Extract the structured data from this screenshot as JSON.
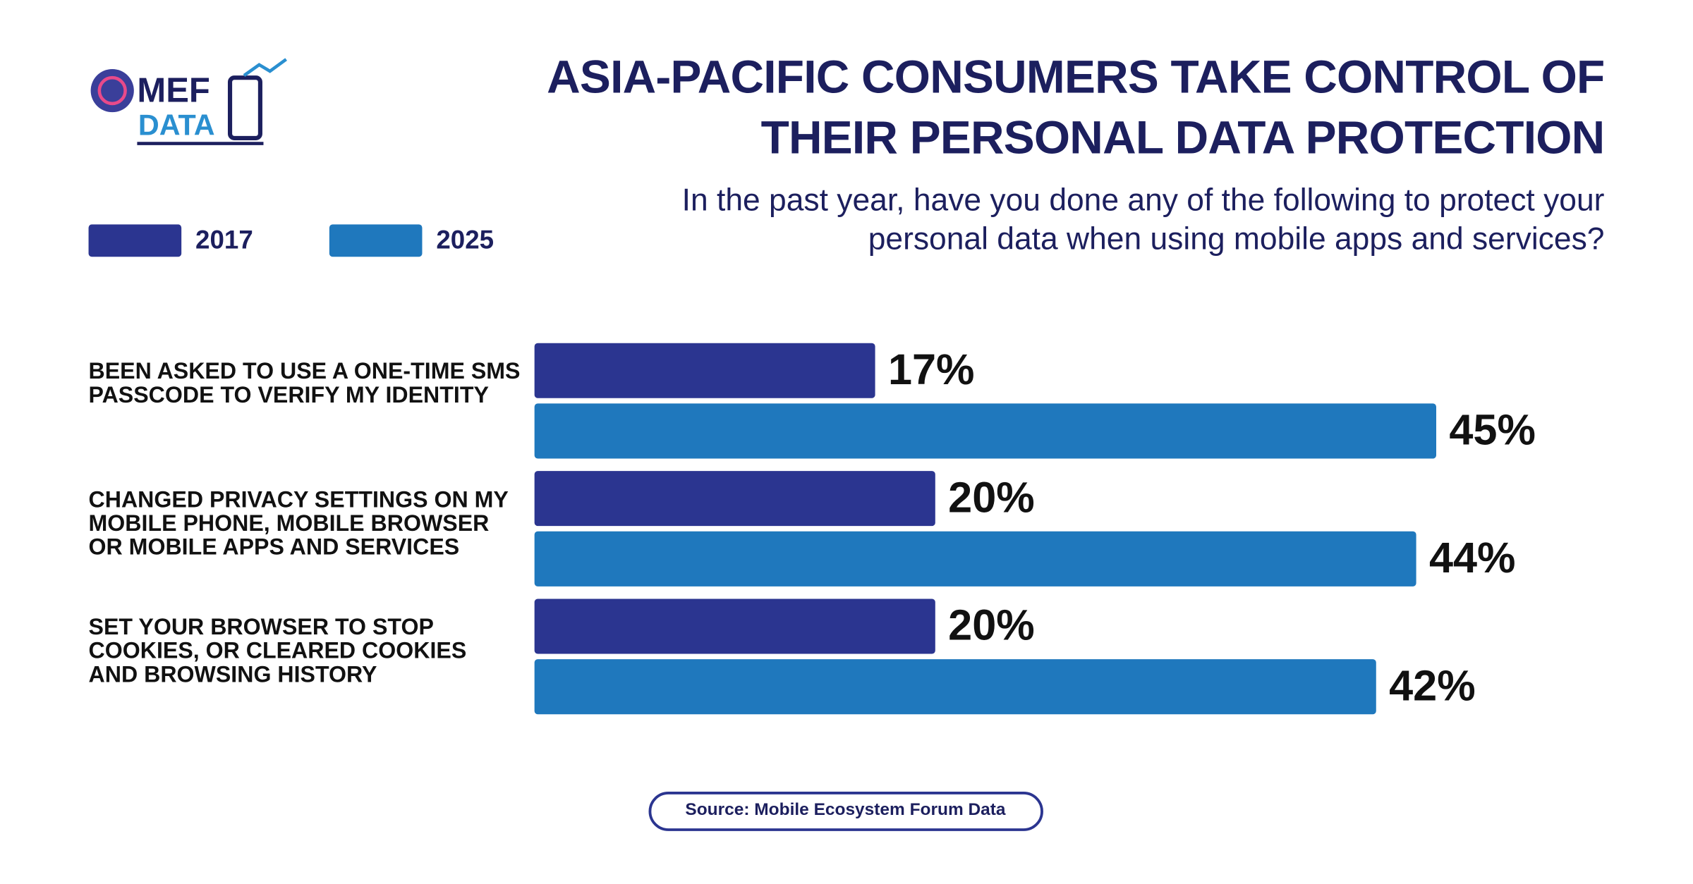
{
  "logo": [
    "MEF",
    "DATA"
  ],
  "chart_data": {
    "type": "bar",
    "orientation": "horizontal",
    "title": "ASIA-PACIFIC CONSUMERS TAKE CONTROL OF THEIR PERSONAL DATA PROTECTION",
    "subtitle": "In the past year, have you done any of the following to protect your personal data when using mobile apps and services?",
    "categories": [
      "BEEN ASKED TO USE A ONE-TIME SMS PASSCODE TO VERIFY MY IDENTITY",
      "CHANGED PRIVACY SETTINGS ON MY MOBILE PHONE, MOBILE BROWSER OR MOBILE APPS AND SERVICES",
      "SET YOUR BROWSER TO STOP COOKIES, OR CLEARED COOKIES AND BROWSING HISTORY"
    ],
    "series": [
      {
        "name": "2017",
        "color": "#2b3590",
        "values": [
          17,
          20,
          20
        ],
        "value_labels": [
          "17%",
          "20%",
          "20%"
        ]
      },
      {
        "name": "2025",
        "color": "#1f78bd",
        "values": [
          45,
          44,
          42
        ],
        "value_labels": [
          "45%",
          "44%",
          "42%"
        ]
      }
    ],
    "legend": "top-left",
    "source": "Source: Mobile Ecosystem Forum Data"
  }
}
